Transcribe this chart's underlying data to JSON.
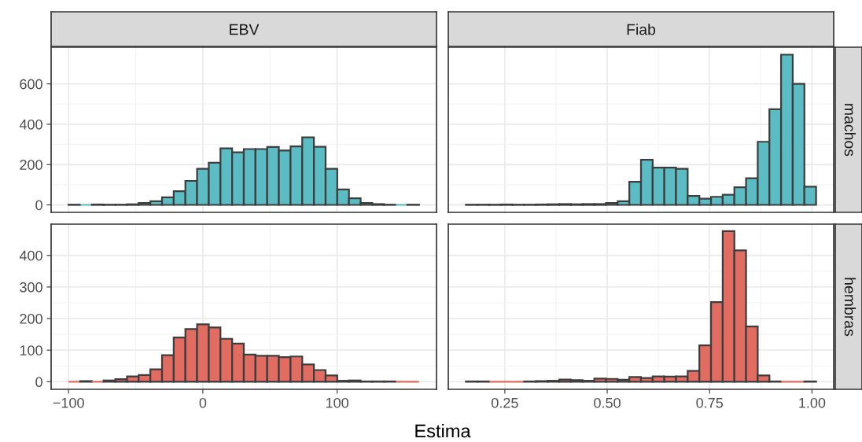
{
  "chart_data": [
    {
      "type": "histogram",
      "title": "EBV",
      "bins": [
        -100,
        -91.3,
        -82.6,
        -73.9,
        -65.2,
        -56.5,
        -47.8,
        -39.1,
        -30.4,
        -21.7,
        -13,
        -4.3,
        4.4,
        13.1,
        21.8,
        30.5,
        39.2,
        47.9,
        56.6,
        65.3,
        74,
        82.7,
        91.4,
        100.1,
        108.8,
        117.5,
        126.2,
        134.9,
        143.6,
        152.3,
        161
      ],
      "values": [
        1,
        0,
        2,
        1,
        1,
        3,
        9,
        18,
        38,
        68,
        119,
        179,
        209,
        280,
        261,
        277,
        277,
        287,
        270,
        290,
        335,
        288,
        179,
        77,
        33,
        9,
        4,
        1,
        0,
        1
      ],
      "color": "#5bbcc3",
      "xlim": [
        -113,
        174
      ],
      "ylim": [
        -37,
        782
      ],
      "yticks": [
        0,
        200,
        400,
        600
      ],
      "xticks": [
        {
          "value": -100,
          "label": null
        },
        {
          "value": 0,
          "label": null
        },
        {
          "value": 100,
          "label": null
        }
      ],
      "grid": true,
      "tick_labels": "y"
    },
    {
      "type": "histogram",
      "title": "Fiab",
      "y2label": "machos",
      "bins": [
        0.155,
        0.1835,
        0.212,
        0.2405,
        0.269,
        0.2975,
        0.326,
        0.3545,
        0.383,
        0.4115,
        0.44,
        0.4685,
        0.497,
        0.5255,
        0.554,
        0.5825,
        0.611,
        0.6395,
        0.668,
        0.6965,
        0.725,
        0.7535,
        0.782,
        0.8105,
        0.839,
        0.8675,
        0.896,
        0.9245,
        0.953,
        0.9815,
        1.01
      ],
      "values": [
        1,
        1,
        1,
        2,
        1,
        1,
        2,
        3,
        4,
        3,
        4,
        4,
        9,
        18,
        115,
        224,
        185,
        185,
        179,
        44,
        31,
        40,
        50,
        87,
        132,
        313,
        474,
        745,
        600,
        90
      ],
      "color": "#5bbcc3",
      "xlim": [
        0.112,
        1.053
      ],
      "ylim": [
        -37,
        782
      ],
      "yticks": [
        {
          "value": 0,
          "label": null
        },
        {
          "value": 200,
          "label": null
        },
        {
          "value": 400,
          "label": null
        },
        {
          "value": 600,
          "label": null
        }
      ],
      "xticks": [
        {
          "value": 0.25,
          "label": null
        },
        {
          "value": 0.5,
          "label": null
        },
        {
          "value": 0.75,
          "label": null
        },
        {
          "value": 1.0,
          "label": null
        }
      ],
      "grid": true,
      "tick_labels": false
    },
    {
      "type": "histogram",
      "xlabel": "Estima",
      "bins": [
        -100,
        -91.3,
        -82.6,
        -73.9,
        -65.2,
        -56.5,
        -47.8,
        -39.1,
        -30.4,
        -21.7,
        -13,
        -4.3,
        4.4,
        13.1,
        21.8,
        30.5,
        39.2,
        47.9,
        56.6,
        65.3,
        74,
        82.7,
        91.4,
        100.1,
        108.8,
        117.5,
        126.2,
        134.9,
        143.6,
        152.3,
        161
      ],
      "values": [
        0,
        2,
        0,
        4,
        8,
        17,
        21,
        39,
        84,
        140,
        167,
        182,
        172,
        136,
        121,
        86,
        82,
        82,
        78,
        80,
        55,
        37,
        20,
        3,
        4,
        1,
        1,
        1,
        0,
        0
      ],
      "color": "#e06c62",
      "xlim": [
        -113,
        174
      ],
      "ylim": [
        -24,
        499
      ],
      "yticks": [
        0,
        100,
        200,
        300,
        400
      ],
      "xticks": [
        {
          "value": -100,
          "label": "−100"
        },
        0,
        100
      ],
      "grid": true
    },
    {
      "type": "histogram",
      "y2label": "hembras",
      "bins": [
        0.155,
        0.1835,
        0.212,
        0.2405,
        0.269,
        0.2975,
        0.326,
        0.3545,
        0.383,
        0.4115,
        0.44,
        0.4685,
        0.497,
        0.5255,
        0.554,
        0.5825,
        0.611,
        0.6395,
        0.668,
        0.6965,
        0.725,
        0.7535,
        0.782,
        0.8105,
        0.839,
        0.8675,
        0.896,
        0.9245,
        0.953,
        0.9815,
        1.01
      ],
      "values": [
        1,
        1,
        0,
        0,
        0,
        1,
        2,
        3,
        7,
        5,
        3,
        10,
        9,
        6,
        15,
        12,
        17,
        16,
        17,
        34,
        115,
        252,
        477,
        416,
        175,
        20,
        1,
        0,
        0,
        1
      ],
      "color": "#e06c62",
      "xlim": [
        0.112,
        1.053
      ],
      "ylim": [
        -24,
        499
      ],
      "yticks": [
        {
          "value": 0,
          "label": null
        },
        {
          "value": 100,
          "label": null
        },
        {
          "value": 200,
          "label": null
        },
        {
          "value": 300,
          "label": null
        },
        {
          "value": 400,
          "label": null
        }
      ],
      "xticks": [
        {
          "value": 0.25,
          "label": "0.25"
        },
        {
          "value": 0.5,
          "label": "0.50"
        },
        {
          "value": 0.75,
          "label": "0.75"
        },
        {
          "value": 1.0,
          "label": "1.00"
        }
      ],
      "grid": true,
      "tick_labels": "x"
    }
  ]
}
